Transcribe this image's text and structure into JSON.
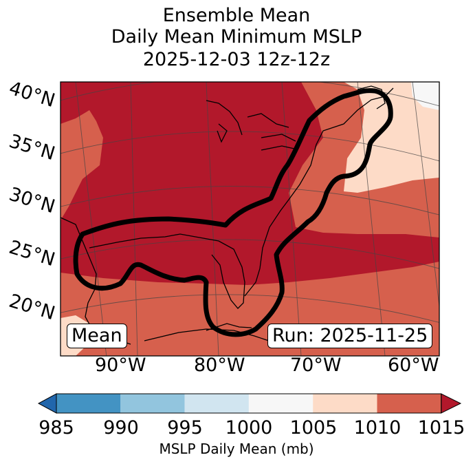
{
  "title": {
    "line1": "Ensemble Mean",
    "line2": "Daily Mean Minimum MSLP",
    "line3": "2025-12-03 12z-12z"
  },
  "map": {
    "region": "Eastern United States, Gulf of Mexico and western Atlantic",
    "lat_labels": [
      "40°N",
      "35°N",
      "30°N",
      "25°N",
      "20°N"
    ],
    "lon_labels": [
      "90°W",
      "80°W",
      "70°W",
      "60°W"
    ],
    "left_box": "Mean",
    "right_box": "Run: 2025-11-25",
    "fill_colors": {
      "c1005_1010": "#fddbc7",
      "c1010_1015": "#d6604d",
      "c1015_plus": "#b2182b"
    },
    "contour_color": "#000000"
  },
  "colorbar": {
    "ticks": [
      "985",
      "990",
      "995",
      "1000",
      "1005",
      "1010",
      "1015"
    ],
    "colors": [
      "#2166ac",
      "#4393c3",
      "#92c5de",
      "#d1e5f0",
      "#f7f7f7",
      "#fddbc7",
      "#d6604d",
      "#b2182b"
    ],
    "label": "MSLP Daily Mean (mb)"
  }
}
